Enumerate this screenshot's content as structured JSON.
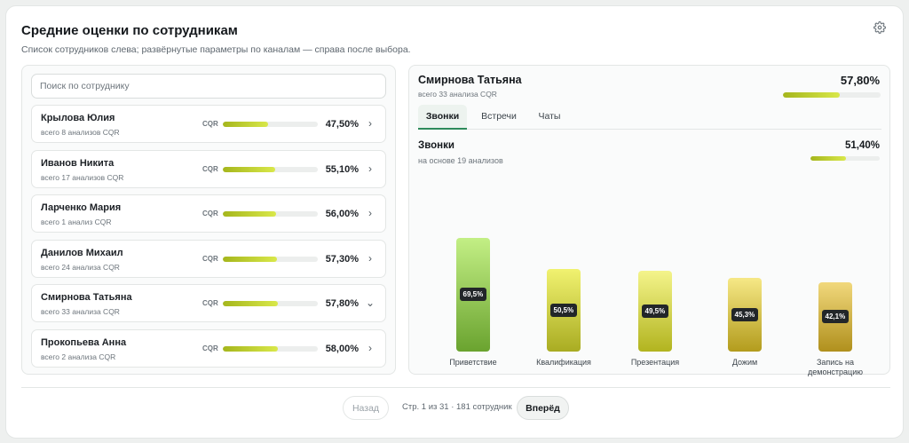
{
  "header": {
    "title": "Средние оценки по сотрудникам",
    "subtitle": "Список сотрудников слева; развёрнутые параметры по каналам — справа после выбора.",
    "settings_icon": "gear-icon"
  },
  "search": {
    "placeholder": "Поиск по сотруднику",
    "value": ""
  },
  "metric_label": "CQR",
  "employees": [
    {
      "name": "Крылова Юлия",
      "sub": "всего 8 анализов CQR",
      "pct": "47,50%",
      "value": 0.475,
      "expanded": false
    },
    {
      "name": "Иванов Никита",
      "sub": "всего 17 анализов CQR",
      "pct": "55,10%",
      "value": 0.551,
      "expanded": false
    },
    {
      "name": "Ларченко Мария",
      "sub": "всего 1 анализ CQR",
      "pct": "56,00%",
      "value": 0.56,
      "expanded": false
    },
    {
      "name": "Данилов Михаил",
      "sub": "всего 24 анализа CQR",
      "pct": "57,30%",
      "value": 0.573,
      "expanded": false
    },
    {
      "name": "Смирнова Татьяна",
      "sub": "всего 33 анализа CQR",
      "pct": "57,80%",
      "value": 0.578,
      "expanded": true
    },
    {
      "name": "Прокопьева Анна",
      "sub": "всего 2 анализа CQR",
      "pct": "58,00%",
      "value": 0.58,
      "expanded": false
    }
  ],
  "detail": {
    "name": "Смирнова Татьяна",
    "sub": "всего 33 анализа CQR",
    "pct": "57,80%",
    "value": 0.578,
    "tabs": [
      {
        "label": "Звонки",
        "active": true
      },
      {
        "label": "Встречи",
        "active": false
      },
      {
        "label": "Чаты",
        "active": false
      }
    ],
    "section": {
      "title": "Звонки",
      "sub": "на основе 19 анализов",
      "pct": "51,40%",
      "value": 0.514
    }
  },
  "chart_data": {
    "type": "bar",
    "categories": [
      "Приветствие",
      "Квалификация",
      "Презентация",
      "Дожим",
      "Запись на демонстрацию"
    ],
    "values": [
      69.5,
      50.5,
      49.5,
      45.3,
      42.1
    ],
    "value_labels": [
      "69,5%",
      "50,5%",
      "49,5%",
      "45,3%",
      "42,1%"
    ],
    "colors": [
      [
        "#c3ef85",
        "#6aa32f"
      ],
      [
        "#f1f270",
        "#a9ac22"
      ],
      [
        "#f4f48b",
        "#b2b41f"
      ],
      [
        "#f6e886",
        "#b39c1d"
      ],
      [
        "#f1d87c",
        "#b0901d"
      ]
    ]
  },
  "pagination": {
    "prev_label": "Назад",
    "next_label": "Вперёд",
    "info": "Стр. 1 из 31 · 181 сотрудник"
  }
}
